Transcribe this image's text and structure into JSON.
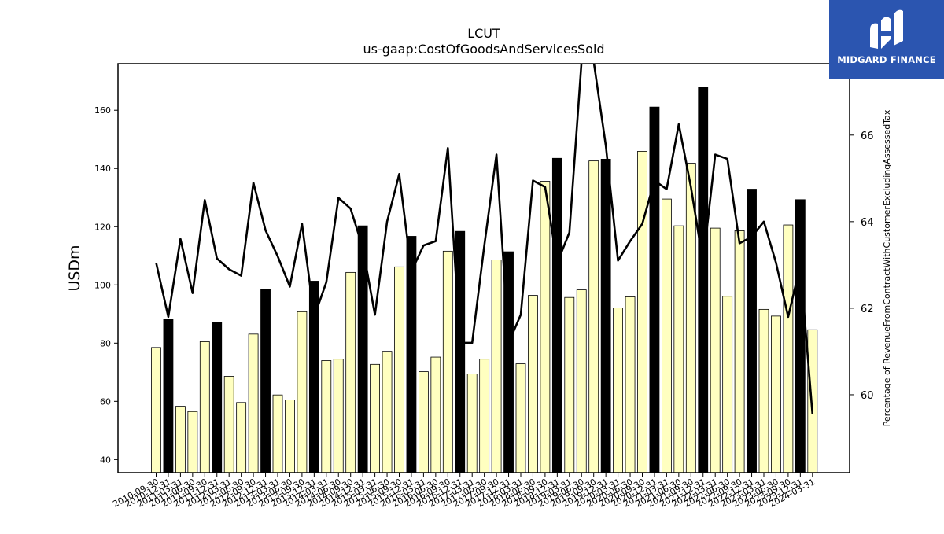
{
  "brand": {
    "name": "MIDGARD FINANCE",
    "bg": "#2b55b0"
  },
  "chart_data": {
    "type": "bar",
    "title": "LCUT",
    "subtitle": "us-gaap:CostOfGoodsAndServicesSold",
    "ylabel": "USDm",
    "y2label": "Percentage of RevenueFromContractWithCustomerExcludingAssessedTax",
    "ylim": [
      35.5,
      176
    ],
    "y2lim": [
      58.2,
      67.65
    ],
    "yticks": [
      40,
      60,
      80,
      100,
      120,
      140,
      160
    ],
    "y2ticks": [
      60,
      62,
      64,
      66
    ],
    "legend": "none",
    "grid": false,
    "colors": {
      "quarter_bar": "#ffffc0",
      "year_bar": "#000000",
      "line": "#000000"
    },
    "categories": [
      "2010-09-30",
      "2010-12-31",
      "2011-03-31",
      "2011-06-30",
      "2011-09-30",
      "2011-12-31",
      "2012-03-31",
      "2012-06-30",
      "2012-09-30",
      "2012-12-31",
      "2013-03-31",
      "2013-06-30",
      "2013-09-30",
      "2013-12-31",
      "2014-03-31",
      "2014-06-30",
      "2014-09-30",
      "2014-12-31",
      "2015-03-31",
      "2015-06-30",
      "2015-09-30",
      "2015-12-31",
      "2016-03-31",
      "2016-06-30",
      "2016-09-30",
      "2016-12-31",
      "2017-03-31",
      "2017-06-30",
      "2017-09-30",
      "2017-12-31",
      "2018-03-31",
      "2018-06-30",
      "2018-09-30",
      "2018-12-31",
      "2019-03-31",
      "2019-06-30",
      "2019-09-30",
      "2019-12-31",
      "2020-03-31",
      "2020-06-30",
      "2020-09-30",
      "2020-12-31",
      "2021-03-31",
      "2021-06-30",
      "2021-09-30",
      "2021-12-31",
      "2022-03-31",
      "2022-06-30",
      "2022-09-30",
      "2022-12-31",
      "2023-03-31",
      "2023-06-30",
      "2023-09-30",
      "2023-12-31",
      "2024-03-31"
    ],
    "series": [
      {
        "kind": "bar",
        "values": [
          78.5,
          88.2,
          58.3,
          56.5,
          80.5,
          87.0,
          68.6,
          59.6,
          83.1,
          98.6,
          62.2,
          60.5,
          90.8,
          101.3,
          74.0,
          74.5,
          104.3,
          120.3,
          72.7,
          77.2,
          106.2,
          116.7,
          70.2,
          75.2,
          111.6,
          118.4,
          69.4,
          74.5,
          108.6,
          111.4,
          72.9,
          96.4,
          135.6,
          143.5,
          95.7,
          98.3,
          142.6,
          143.2,
          92.1,
          95.9,
          145.9,
          161.1,
          129.5,
          120.3,
          141.8,
          167.9,
          119.5,
          96.1,
          118.6,
          132.9,
          91.6,
          89.3,
          120.6,
          129.3,
          84.6
        ],
        "annual": [
          false,
          true,
          false,
          false,
          false,
          true,
          false,
          false,
          false,
          true,
          false,
          false,
          false,
          true,
          false,
          false,
          false,
          true,
          false,
          false,
          false,
          true,
          false,
          false,
          false,
          true,
          false,
          false,
          false,
          true,
          false,
          false,
          false,
          true,
          false,
          false,
          false,
          true,
          false,
          false,
          false,
          true,
          false,
          false,
          false,
          true,
          false,
          false,
          false,
          true,
          false,
          false,
          false,
          true,
          false
        ]
      },
      {
        "kind": "line",
        "axis": "right",
        "values": [
          63.05,
          61.8,
          63.6,
          62.35,
          64.5,
          63.15,
          62.9,
          62.75,
          64.9,
          63.8,
          63.2,
          62.5,
          63.95,
          61.8,
          62.6,
          64.55,
          64.3,
          63.4,
          61.85,
          64.0,
          65.1,
          62.85,
          63.45,
          63.55,
          65.7,
          61.2,
          61.2,
          63.45,
          65.55,
          61.2,
          61.85,
          64.95,
          64.8,
          63.05,
          63.75,
          67.7,
          67.7,
          65.75,
          63.1,
          63.55,
          63.95,
          64.95,
          64.75,
          66.25,
          64.8,
          63.05,
          65.55,
          65.45,
          63.5,
          63.65,
          64.0,
          63.05,
          61.8,
          63.0,
          59.55
        ]
      }
    ]
  }
}
